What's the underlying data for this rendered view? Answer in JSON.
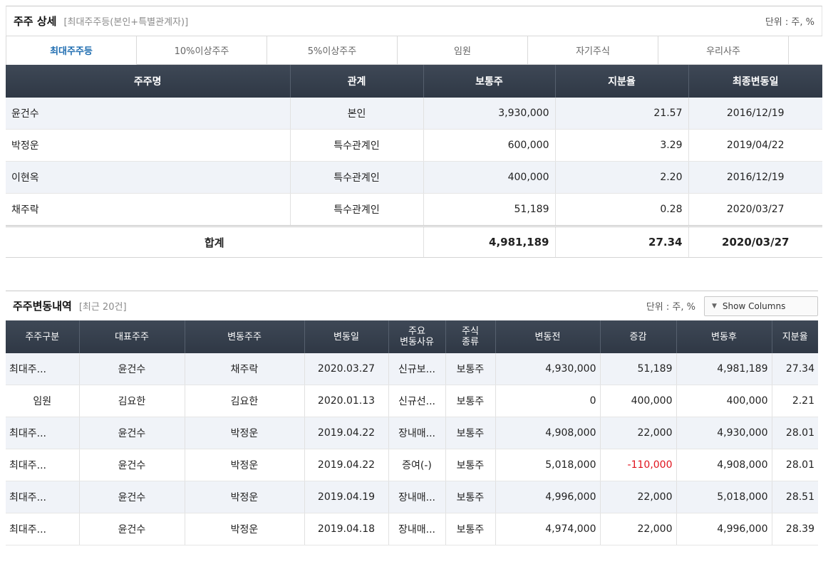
{
  "holders": {
    "title": "주주 상세",
    "subtitle": "[최대주주등(본인+특별관계자)]",
    "unit": "단위 : 주, %",
    "tabs": [
      "최대주주등",
      "10%이상주주",
      "5%이상주주",
      "임원",
      "자기주식",
      "우리사주"
    ],
    "columns": [
      "주주명",
      "관계",
      "보통주",
      "지분율",
      "최종변동일"
    ],
    "rows": [
      {
        "name": "윤건수",
        "relation": "본인",
        "shares": "3,930,000",
        "ratio": "21.57",
        "date": "2016/12/19"
      },
      {
        "name": "박정운",
        "relation": "특수관계인",
        "shares": "600,000",
        "ratio": "3.29",
        "date": "2019/04/22"
      },
      {
        "name": "이현옥",
        "relation": "특수관계인",
        "shares": "400,000",
        "ratio": "2.20",
        "date": "2016/12/19"
      },
      {
        "name": "채주락",
        "relation": "특수관계인",
        "shares": "51,189",
        "ratio": "0.28",
        "date": "2020/03/27"
      }
    ],
    "total": {
      "label": "합계",
      "shares": "4,981,189",
      "ratio": "27.34",
      "date": "2020/03/27"
    }
  },
  "history": {
    "title": "주주변동내역",
    "subtitle": "[최근 20건]",
    "unit": "단위 : 주, %",
    "show_columns": "Show Columns",
    "columns": [
      "주주구분",
      "대표주주",
      "변동주주",
      "변동일",
      "주요\n변동사유",
      "주식\n종류",
      "변동전",
      "증감",
      "변동후",
      "지분율"
    ],
    "rows": [
      {
        "type": "최대주...",
        "rep": "윤건수",
        "holder": "채주락",
        "date": "2020.03.27",
        "reason": "신규보...",
        "kind": "보통주",
        "before": "4,930,000",
        "change": "51,189",
        "after": "4,981,189",
        "ratio": "27.34"
      },
      {
        "type": "임원",
        "rep": "김요한",
        "holder": "김요한",
        "date": "2020.01.13",
        "reason": "신규선...",
        "kind": "보통주",
        "before": "0",
        "change": "400,000",
        "after": "400,000",
        "ratio": "2.21"
      },
      {
        "type": "최대주...",
        "rep": "윤건수",
        "holder": "박정운",
        "date": "2019.04.22",
        "reason": "장내매...",
        "kind": "보통주",
        "before": "4,908,000",
        "change": "22,000",
        "after": "4,930,000",
        "ratio": "28.01"
      },
      {
        "type": "최대주...",
        "rep": "윤건수",
        "holder": "박정운",
        "date": "2019.04.22",
        "reason": "증여(-)",
        "kind": "보통주",
        "before": "5,018,000",
        "change": "-110,000",
        "after": "4,908,000",
        "ratio": "28.01"
      },
      {
        "type": "최대주...",
        "rep": "윤건수",
        "holder": "박정운",
        "date": "2019.04.19",
        "reason": "장내매...",
        "kind": "보통주",
        "before": "4,996,000",
        "change": "22,000",
        "after": "5,018,000",
        "ratio": "28.51"
      },
      {
        "type": "최대주...",
        "rep": "윤건수",
        "holder": "박정운",
        "date": "2019.04.18",
        "reason": "장내매...",
        "kind": "보통주",
        "before": "4,974,000",
        "change": "22,000",
        "after": "4,996,000",
        "ratio": "28.39"
      }
    ]
  },
  "colors": {
    "header_bg": "#353f4c",
    "active_tab": "#1e6cb0",
    "alt_row": "#f0f3f8",
    "negative": "#e0141e"
  }
}
